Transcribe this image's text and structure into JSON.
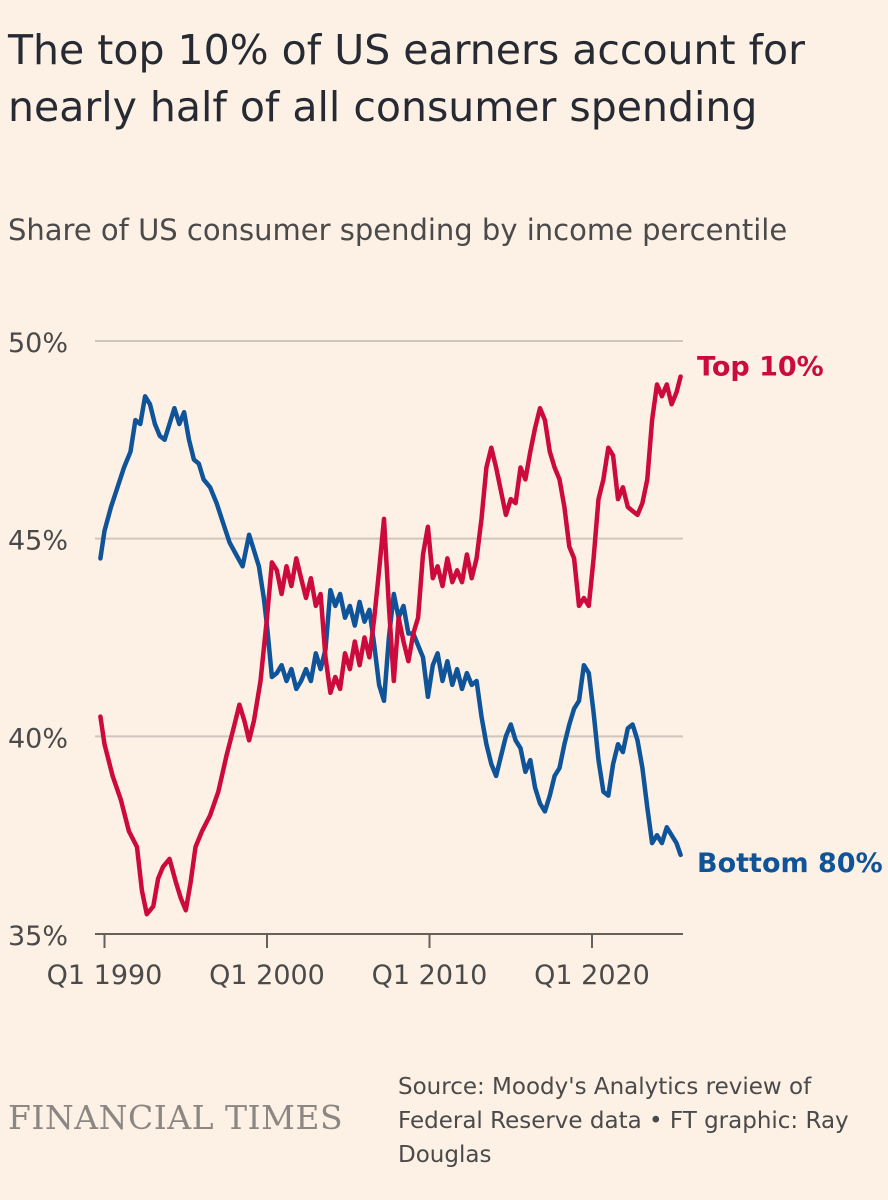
{
  "title": "The top 10% of US earners account for nearly half of all consumer spending",
  "subtitle": "Share of US consumer spending by income percentile",
  "brand": "FINANCIAL TIMES",
  "source": "Source: Moody's Analytics review of Federal Reserve data • FT graphic: Ray Douglas",
  "colors": {
    "background": "#fdf0e5",
    "top10": "#cc0a3b",
    "bottom80": "#0f5499",
    "grid": "#cfc6bd",
    "axis_text": "#4a4a4a"
  },
  "chart_data": {
    "type": "line",
    "title": "Share of US consumer spending by income percentile",
    "xlabel": "",
    "ylabel": "",
    "xlim": [
      1989.6,
      2025.6
    ],
    "ylim": [
      35,
      50
    ],
    "y_ticks": [
      35,
      40,
      45,
      50
    ],
    "y_tick_labels": [
      "35%",
      "40%",
      "45%",
      "50%"
    ],
    "x_ticks": [
      1990,
      2000,
      2010,
      2020
    ],
    "x_tick_labels": [
      "Q1 1990",
      "Q1 2000",
      "Q1 2010",
      "Q1 2020"
    ],
    "grid": true,
    "legend": "direct labels at line ends",
    "series": [
      {
        "name": "Top 10%",
        "color": "#cc0a3b",
        "points": [
          [
            1989.75,
            40.5
          ],
          [
            1990.0,
            39.8
          ],
          [
            1990.5,
            39.0
          ],
          [
            1991.0,
            38.4
          ],
          [
            1991.5,
            37.6
          ],
          [
            1992.0,
            37.2
          ],
          [
            1992.3,
            36.1
          ],
          [
            1992.6,
            35.5
          ],
          [
            1993.0,
            35.7
          ],
          [
            1993.3,
            36.4
          ],
          [
            1993.6,
            36.7
          ],
          [
            1994.0,
            36.9
          ],
          [
            1994.4,
            36.3
          ],
          [
            1994.7,
            35.9
          ],
          [
            1995.0,
            35.6
          ],
          [
            1995.3,
            36.3
          ],
          [
            1995.6,
            37.2
          ],
          [
            1996.0,
            37.6
          ],
          [
            1996.5,
            38.0
          ],
          [
            1997.0,
            38.6
          ],
          [
            1997.5,
            39.5
          ],
          [
            1998.0,
            40.3
          ],
          [
            1998.3,
            40.8
          ],
          [
            1998.6,
            40.4
          ],
          [
            1998.9,
            39.9
          ],
          [
            1999.2,
            40.4
          ],
          [
            1999.6,
            41.4
          ],
          [
            2000.0,
            43.0
          ],
          [
            2000.3,
            44.4
          ],
          [
            2000.6,
            44.2
          ],
          [
            2000.9,
            43.6
          ],
          [
            2001.2,
            44.3
          ],
          [
            2001.5,
            43.8
          ],
          [
            2001.8,
            44.5
          ],
          [
            2002.1,
            44.0
          ],
          [
            2002.4,
            43.5
          ],
          [
            2002.7,
            44.0
          ],
          [
            2003.0,
            43.3
          ],
          [
            2003.3,
            43.6
          ],
          [
            2003.6,
            42.0
          ],
          [
            2003.9,
            41.1
          ],
          [
            2004.2,
            41.5
          ],
          [
            2004.5,
            41.2
          ],
          [
            2004.8,
            42.1
          ],
          [
            2005.1,
            41.7
          ],
          [
            2005.4,
            42.4
          ],
          [
            2005.7,
            41.8
          ],
          [
            2006.0,
            42.5
          ],
          [
            2006.3,
            42.0
          ],
          [
            2006.6,
            43.0
          ],
          [
            2006.9,
            44.2
          ],
          [
            2007.2,
            45.5
          ],
          [
            2007.5,
            43.3
          ],
          [
            2007.8,
            41.4
          ],
          [
            2008.1,
            43.0
          ],
          [
            2008.4,
            42.4
          ],
          [
            2008.7,
            41.9
          ],
          [
            2009.0,
            42.6
          ],
          [
            2009.3,
            43.0
          ],
          [
            2009.6,
            44.6
          ],
          [
            2009.9,
            45.3
          ],
          [
            2010.2,
            44.0
          ],
          [
            2010.5,
            44.3
          ],
          [
            2010.8,
            43.8
          ],
          [
            2011.1,
            44.5
          ],
          [
            2011.4,
            43.9
          ],
          [
            2011.7,
            44.2
          ],
          [
            2012.0,
            43.9
          ],
          [
            2012.3,
            44.6
          ],
          [
            2012.6,
            44.0
          ],
          [
            2012.9,
            44.5
          ],
          [
            2013.2,
            45.5
          ],
          [
            2013.5,
            46.8
          ],
          [
            2013.8,
            47.3
          ],
          [
            2014.1,
            46.8
          ],
          [
            2014.4,
            46.2
          ],
          [
            2014.7,
            45.6
          ],
          [
            2015.0,
            46.0
          ],
          [
            2015.3,
            45.9
          ],
          [
            2015.6,
            46.8
          ],
          [
            2015.9,
            46.5
          ],
          [
            2016.2,
            47.2
          ],
          [
            2016.5,
            47.8
          ],
          [
            2016.8,
            48.3
          ],
          [
            2017.1,
            48.0
          ],
          [
            2017.4,
            47.2
          ],
          [
            2017.7,
            46.8
          ],
          [
            2018.0,
            46.5
          ],
          [
            2018.3,
            45.8
          ],
          [
            2018.6,
            44.8
          ],
          [
            2018.9,
            44.5
          ],
          [
            2019.2,
            43.3
          ],
          [
            2019.5,
            43.5
          ],
          [
            2019.8,
            43.3
          ],
          [
            2020.1,
            44.5
          ],
          [
            2020.4,
            46.0
          ],
          [
            2020.7,
            46.5
          ],
          [
            2021.0,
            47.3
          ],
          [
            2021.3,
            47.1
          ],
          [
            2021.6,
            46.0
          ],
          [
            2021.9,
            46.3
          ],
          [
            2022.2,
            45.8
          ],
          [
            2022.5,
            45.7
          ],
          [
            2022.8,
            45.6
          ],
          [
            2023.1,
            45.9
          ],
          [
            2023.4,
            46.5
          ],
          [
            2023.7,
            48.0
          ],
          [
            2024.0,
            48.9
          ],
          [
            2024.3,
            48.6
          ],
          [
            2024.6,
            48.9
          ],
          [
            2024.9,
            48.4
          ],
          [
            2025.2,
            48.7
          ],
          [
            2025.45,
            49.1
          ]
        ]
      },
      {
        "name": "Bottom 80%",
        "color": "#0f5499",
        "points": [
          [
            1989.75,
            44.5
          ],
          [
            1990.0,
            45.2
          ],
          [
            1990.4,
            45.8
          ],
          [
            1990.8,
            46.3
          ],
          [
            1991.2,
            46.8
          ],
          [
            1991.6,
            47.2
          ],
          [
            1991.9,
            48.0
          ],
          [
            1992.2,
            47.9
          ],
          [
            1992.5,
            48.6
          ],
          [
            1992.8,
            48.4
          ],
          [
            1993.1,
            47.9
          ],
          [
            1993.4,
            47.6
          ],
          [
            1993.7,
            47.5
          ],
          [
            1994.0,
            47.9
          ],
          [
            1994.3,
            48.3
          ],
          [
            1994.6,
            47.9
          ],
          [
            1994.9,
            48.2
          ],
          [
            1995.2,
            47.5
          ],
          [
            1995.5,
            47.0
          ],
          [
            1995.8,
            46.9
          ],
          [
            1996.1,
            46.5
          ],
          [
            1996.5,
            46.3
          ],
          [
            1996.9,
            45.9
          ],
          [
            1997.3,
            45.4
          ],
          [
            1997.7,
            44.9
          ],
          [
            1998.1,
            44.6
          ],
          [
            1998.5,
            44.3
          ],
          [
            1998.9,
            45.1
          ],
          [
            1999.2,
            44.7
          ],
          [
            1999.5,
            44.3
          ],
          [
            1999.8,
            43.5
          ],
          [
            2000.0,
            42.8
          ],
          [
            2000.3,
            41.5
          ],
          [
            2000.6,
            41.6
          ],
          [
            2000.9,
            41.8
          ],
          [
            2001.2,
            41.4
          ],
          [
            2001.5,
            41.7
          ],
          [
            2001.8,
            41.2
          ],
          [
            2002.1,
            41.4
          ],
          [
            2002.4,
            41.7
          ],
          [
            2002.7,
            41.4
          ],
          [
            2003.0,
            42.1
          ],
          [
            2003.3,
            41.7
          ],
          [
            2003.6,
            42.2
          ],
          [
            2003.9,
            43.7
          ],
          [
            2004.2,
            43.3
          ],
          [
            2004.5,
            43.6
          ],
          [
            2004.8,
            43.0
          ],
          [
            2005.1,
            43.3
          ],
          [
            2005.4,
            42.8
          ],
          [
            2005.7,
            43.4
          ],
          [
            2006.0,
            42.9
          ],
          [
            2006.3,
            43.2
          ],
          [
            2006.6,
            42.3
          ],
          [
            2006.9,
            41.3
          ],
          [
            2007.2,
            40.9
          ],
          [
            2007.5,
            42.5
          ],
          [
            2007.8,
            43.6
          ],
          [
            2008.1,
            43.0
          ],
          [
            2008.4,
            43.3
          ],
          [
            2008.7,
            42.6
          ],
          [
            2009.0,
            42.6
          ],
          [
            2009.3,
            42.3
          ],
          [
            2009.6,
            42.0
          ],
          [
            2009.9,
            41.0
          ],
          [
            2010.2,
            41.8
          ],
          [
            2010.5,
            42.1
          ],
          [
            2010.8,
            41.4
          ],
          [
            2011.1,
            41.9
          ],
          [
            2011.4,
            41.3
          ],
          [
            2011.7,
            41.7
          ],
          [
            2012.0,
            41.2
          ],
          [
            2012.3,
            41.6
          ],
          [
            2012.6,
            41.3
          ],
          [
            2012.9,
            41.4
          ],
          [
            2013.2,
            40.5
          ],
          [
            2013.5,
            39.8
          ],
          [
            2013.8,
            39.3
          ],
          [
            2014.1,
            39.0
          ],
          [
            2014.4,
            39.5
          ],
          [
            2014.7,
            40.0
          ],
          [
            2015.0,
            40.3
          ],
          [
            2015.3,
            39.9
          ],
          [
            2015.6,
            39.7
          ],
          [
            2015.9,
            39.1
          ],
          [
            2016.2,
            39.4
          ],
          [
            2016.5,
            38.7
          ],
          [
            2016.8,
            38.3
          ],
          [
            2017.1,
            38.1
          ],
          [
            2017.4,
            38.5
          ],
          [
            2017.7,
            39.0
          ],
          [
            2018.0,
            39.2
          ],
          [
            2018.3,
            39.8
          ],
          [
            2018.6,
            40.3
          ],
          [
            2018.9,
            40.7
          ],
          [
            2019.2,
            40.9
          ],
          [
            2019.5,
            41.8
          ],
          [
            2019.8,
            41.6
          ],
          [
            2020.1,
            40.6
          ],
          [
            2020.4,
            39.4
          ],
          [
            2020.7,
            38.6
          ],
          [
            2021.0,
            38.5
          ],
          [
            2021.3,
            39.3
          ],
          [
            2021.6,
            39.8
          ],
          [
            2021.9,
            39.6
          ],
          [
            2022.2,
            40.2
          ],
          [
            2022.5,
            40.3
          ],
          [
            2022.8,
            39.9
          ],
          [
            2023.1,
            39.2
          ],
          [
            2023.4,
            38.2
          ],
          [
            2023.7,
            37.3
          ],
          [
            2024.0,
            37.5
          ],
          [
            2024.3,
            37.3
          ],
          [
            2024.6,
            37.7
          ],
          [
            2024.9,
            37.5
          ],
          [
            2025.2,
            37.3
          ],
          [
            2025.45,
            37.0
          ]
        ]
      }
    ]
  }
}
